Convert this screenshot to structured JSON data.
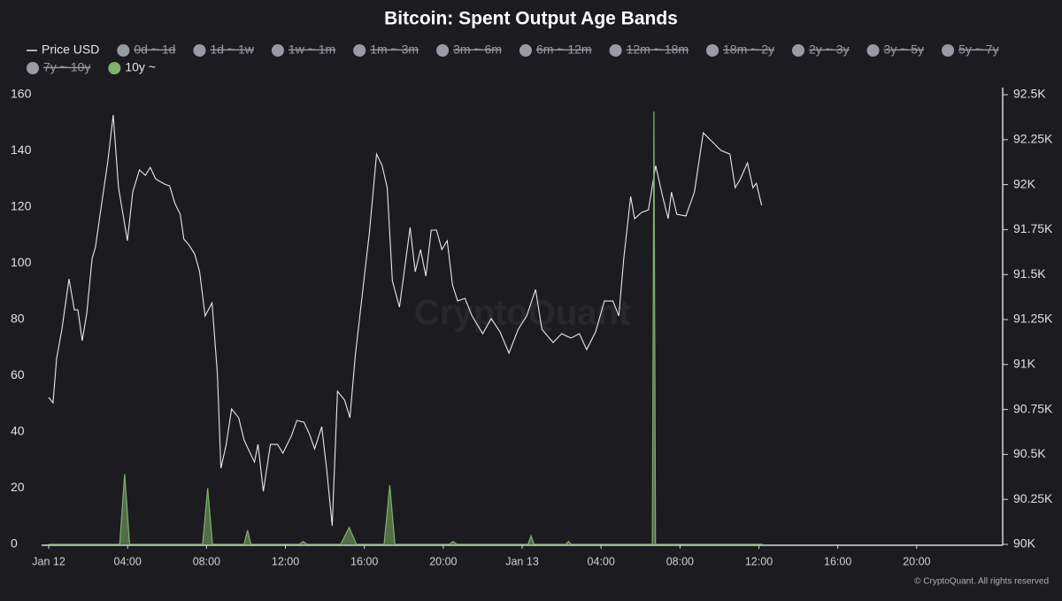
{
  "chart_data": {
    "type": "line",
    "title": "Bitcoin: Spent Output Age Bands",
    "watermark": "CryptoQuant",
    "credit": "© CryptoQuant. All rights reserved",
    "xlim": [
      -0.36,
      48
    ],
    "xticks": [
      {
        "value": 0,
        "label": "Jan 12"
      },
      {
        "value": 4,
        "label": "04:00"
      },
      {
        "value": 8,
        "label": "08:00"
      },
      {
        "value": 12,
        "label": "12:00"
      },
      {
        "value": 16,
        "label": "16:00"
      },
      {
        "value": 20,
        "label": "20:00"
      },
      {
        "value": 24,
        "label": "Jan 13"
      },
      {
        "value": 28,
        "label": "04:00"
      },
      {
        "value": 32,
        "label": "08:00"
      },
      {
        "value": 36,
        "label": "12:00"
      },
      {
        "value": 40,
        "label": "16:00"
      },
      {
        "value": 44,
        "label": "20:00"
      }
    ],
    "ylim": [
      0,
      160
    ],
    "yticks": [
      0,
      20,
      40,
      60,
      80,
      100,
      120,
      140,
      160
    ],
    "y2lim": [
      90000,
      92500
    ],
    "y2ticks": [
      {
        "value": 90000,
        "label": "90K"
      },
      {
        "value": 90250,
        "label": "90.25K"
      },
      {
        "value": 90500,
        "label": "90.5K"
      },
      {
        "value": 90750,
        "label": "90.75K"
      },
      {
        "value": 91000,
        "label": "91K"
      },
      {
        "value": 91250,
        "label": "91.25K"
      },
      {
        "value": 91500,
        "label": "91.5K"
      },
      {
        "value": 91750,
        "label": "91.75K"
      },
      {
        "value": 92000,
        "label": "92K"
      },
      {
        "value": 92250,
        "label": "92.25K"
      },
      {
        "value": 92500,
        "label": "92.5K"
      }
    ],
    "series": [
      {
        "name": "Price USD",
        "color": "#e8e8e8",
        "axis": "y2",
        "style": "line",
        "x": [
          0,
          0.22,
          0.4,
          0.67,
          1.03,
          1.3,
          1.48,
          1.7,
          1.93,
          2.2,
          2.37,
          2.64,
          3.0,
          3.27,
          3.54,
          3.99,
          4.26,
          4.6,
          4.9,
          5.15,
          5.42,
          5.87,
          6.13,
          6.4,
          6.67,
          6.85,
          7.12,
          7.4,
          7.65,
          7.93,
          8.28,
          8.55,
          8.73,
          9.0,
          9.27,
          9.63,
          9.9,
          10.17,
          10.43,
          10.61,
          10.88,
          11.24,
          11.6,
          11.87,
          12.31,
          12.58,
          12.94,
          13.21,
          13.48,
          13.84,
          14.1,
          14.37,
          14.64,
          15.0,
          15.27,
          15.54,
          15.9,
          16.26,
          16.62,
          16.9,
          17.16,
          17.42,
          17.78,
          18.05,
          18.32,
          18.58,
          18.85,
          19.12,
          19.39,
          19.66,
          19.93,
          20.2,
          20.47,
          20.73,
          21.1,
          21.46,
          22.0,
          22.43,
          22.88,
          23.33,
          23.8,
          24.23,
          24.68,
          25.0,
          25.57,
          26.0,
          26.47,
          26.9,
          27.27,
          27.72,
          28.17,
          28.6,
          28.9,
          29.15,
          29.5,
          29.7,
          30.05,
          30.4,
          30.77,
          31.12,
          31.4,
          31.57,
          31.84,
          32.3,
          32.73,
          33.18,
          33.63,
          34.08,
          34.53,
          34.8,
          35.06,
          35.42,
          35.7,
          35.87,
          36.14
        ],
        "values": [
          90817,
          90787,
          91033,
          91196,
          91476,
          91304,
          91304,
          91132,
          91284,
          91589,
          91653,
          91860,
          92131,
          92387,
          91983,
          91688,
          91959,
          92082,
          92052,
          92096,
          92032,
          92003,
          91993,
          91895,
          91835,
          91698,
          91663,
          91614,
          91516,
          91270,
          91343,
          90950,
          90423,
          90556,
          90753,
          90704,
          90581,
          90517,
          90458,
          90556,
          90295,
          90556,
          90556,
          90507,
          90605,
          90689,
          90679,
          90615,
          90531,
          90654,
          90408,
          90103,
          90851,
          90802,
          90704,
          91048,
          91393,
          91737,
          92170,
          92106,
          91983,
          91466,
          91319,
          91540,
          91762,
          91516,
          91639,
          91491,
          91747,
          91747,
          91639,
          91688,
          91442,
          91353,
          91368,
          91270,
          91171,
          91255,
          91181,
          91063,
          91196,
          91270,
          91417,
          91196,
          91122,
          91171,
          91147,
          91171,
          91083,
          91181,
          91353,
          91353,
          91270,
          91589,
          91934,
          91811,
          91845,
          91860,
          92106,
          91934,
          91811,
          91958,
          91835,
          91826,
          91958,
          92288,
          92239,
          92190,
          92170,
          91983,
          92032,
          92121,
          91983,
          92008,
          91885
        ]
      },
      {
        "name": "0d ~ 1d",
        "color": "#9a9aa4",
        "hidden": true,
        "x": [],
        "values": []
      },
      {
        "name": "1d ~ 1w",
        "color": "#9a9aa4",
        "hidden": true,
        "x": [],
        "values": []
      },
      {
        "name": "1w ~ 1m",
        "color": "#9a9aa4",
        "hidden": true,
        "x": [],
        "values": []
      },
      {
        "name": "1m ~ 3m",
        "color": "#9a9aa4",
        "hidden": true,
        "x": [],
        "values": []
      },
      {
        "name": "3m ~ 6m",
        "color": "#9a9aa4",
        "hidden": true,
        "x": [],
        "values": []
      },
      {
        "name": "6m ~ 12m",
        "color": "#9a9aa4",
        "hidden": true,
        "x": [],
        "values": []
      },
      {
        "name": "12m ~ 18m",
        "color": "#9a9aa4",
        "hidden": true,
        "x": [],
        "values": []
      },
      {
        "name": "18m ~ 2y",
        "color": "#9a9aa4",
        "hidden": true,
        "x": [],
        "values": []
      },
      {
        "name": "2y ~ 3y",
        "color": "#9a9aa4",
        "hidden": true,
        "x": [],
        "values": []
      },
      {
        "name": "3y ~ 5y",
        "color": "#9a9aa4",
        "hidden": true,
        "x": [],
        "values": []
      },
      {
        "name": "5y ~ 7y",
        "color": "#9a9aa4",
        "hidden": true,
        "x": [],
        "values": []
      },
      {
        "name": "7y ~ 10y",
        "color": "#9a9aa4",
        "hidden": true,
        "x": [],
        "values": []
      },
      {
        "name": "10y ~",
        "color": "#7fb26a",
        "style": "area",
        "x": [
          0,
          3.6,
          3.85,
          4.1,
          7.8,
          8.06,
          8.3,
          9.9,
          10.08,
          10.25,
          12.7,
          12.9,
          13.1,
          14.8,
          15.23,
          15.6,
          17.0,
          17.29,
          17.55,
          20.3,
          20.5,
          20.7,
          24.3,
          24.45,
          24.6,
          26.2,
          26.35,
          26.5,
          30.6,
          30.68,
          30.76,
          36.2
        ],
        "values": [
          0,
          0,
          25,
          0,
          0,
          20,
          0,
          0,
          5,
          0,
          0,
          1,
          0,
          0,
          6,
          0,
          0,
          21,
          0,
          0,
          1,
          0,
          0,
          3,
          0,
          0,
          1,
          0,
          0,
          154,
          0,
          0
        ]
      }
    ]
  }
}
